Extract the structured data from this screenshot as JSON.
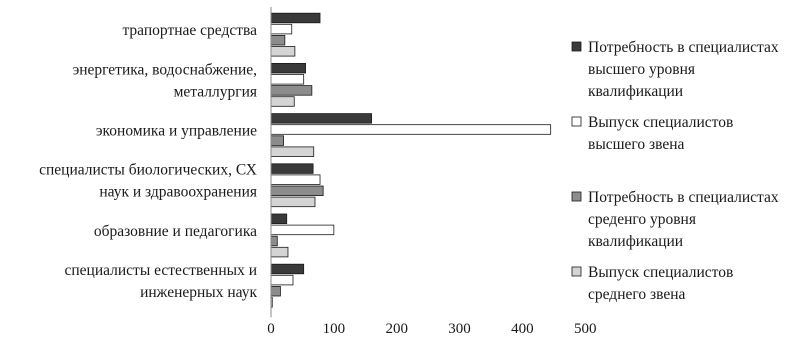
{
  "chart_data": {
    "type": "bar",
    "orientation": "horizontal",
    "title": "",
    "xlabel": "",
    "ylabel": "",
    "xlim": [
      0,
      500
    ],
    "xticks": [
      0,
      100,
      200,
      300,
      400,
      500
    ],
    "grid": false,
    "legend_position": "right",
    "categories": [
      [
        "трапортнае средства"
      ],
      [
        "энергетика, водоснабжение,",
        "металлургия"
      ],
      [
        "экономика и управление"
      ],
      [
        "специалисты биологических, СХ",
        "наук и здравоохранения"
      ],
      [
        "образовние и педагогика"
      ],
      [
        "специалисты естественных и",
        "инженерных  наук"
      ]
    ],
    "series": [
      {
        "name": [
          "Потребность в специалистах",
          "высшего уровня",
          "квалификации"
        ],
        "color": "#3a3a3a",
        "values": [
          78,
          55,
          160,
          67,
          25,
          52
        ]
      },
      {
        "name": [
          "Выпуск специалистов",
          "высшего звена"
        ],
        "color": "#ffffff",
        "values": [
          33,
          52,
          445,
          78,
          100,
          35
        ]
      },
      {
        "name": [
          "Потребность в специалистах",
          "среденго уровня",
          "квалификации"
        ],
        "color": "#8c8c8c",
        "values": [
          22,
          65,
          20,
          83,
          10,
          15
        ]
      },
      {
        "name": [
          "Выпуск специалистов",
          "среднего звена"
        ],
        "color": "#d4d4d4",
        "values": [
          38,
          37,
          68,
          70,
          27,
          2
        ]
      }
    ]
  }
}
